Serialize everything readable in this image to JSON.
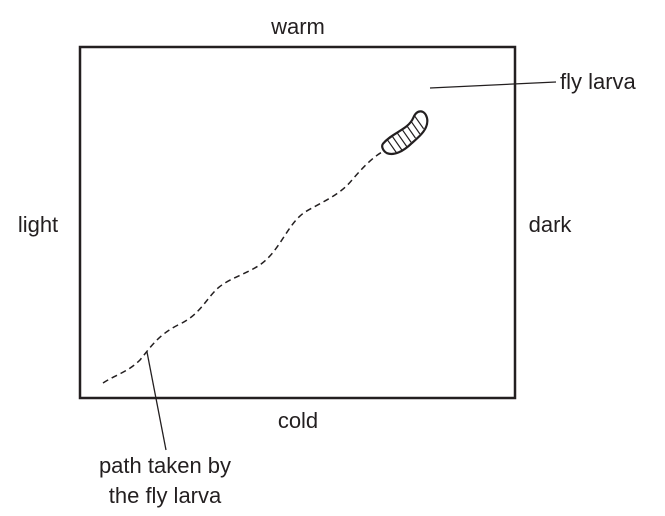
{
  "labels": {
    "top": "warm",
    "bottom": "cold",
    "left": "light",
    "right": "dark",
    "larva": "fly larva",
    "path": [
      "path taken by",
      "the fly larva"
    ]
  }
}
